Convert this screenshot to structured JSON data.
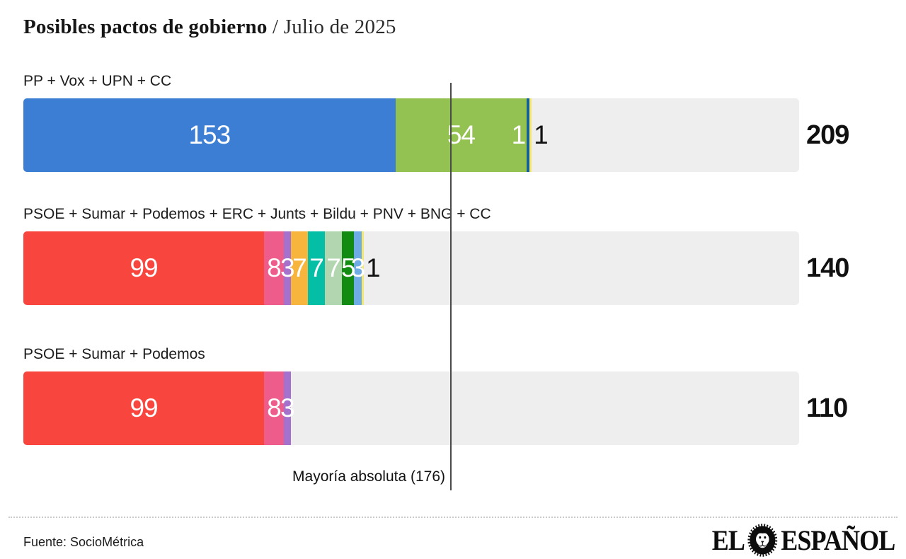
{
  "header": {
    "title_bold": "Posibles pactos de gobierno",
    "title_rest": " / Julio de 2025"
  },
  "chart_data": {
    "type": "bar",
    "subtype": "horizontal-stacked",
    "title": "Posibles pactos de gobierno / Julio de 2025",
    "x_axis": {
      "min": 0,
      "max": 319,
      "units": "escaños",
      "grid": false
    },
    "majority_line": {
      "label": "Mayoría absoluta (176)",
      "seats": 176
    },
    "track_color": "#eeeeee",
    "rows": [
      {
        "label": "PP + Vox + UPN + CC",
        "total": 209,
        "segments": [
          {
            "party": "PP",
            "seats": 153,
            "color": "#3b7ed4",
            "label_color": "#ffffff",
            "label_pos": "center"
          },
          {
            "party": "Vox",
            "seats": 54,
            "color": "#93c152",
            "label_color": "#ffffff",
            "label_pos": "center"
          },
          {
            "party": "UPN",
            "seats": 1,
            "color": "#145f90",
            "label_color": "#ffffff",
            "label_pos": "before"
          },
          {
            "party": "CC",
            "seats": 1,
            "color": "#f3e871",
            "label_color": "#111111",
            "label_pos": "after"
          }
        ]
      },
      {
        "label": "PSOE + Sumar + Podemos + ERC + Junts + Bildu + PNV + BNG + CC",
        "total": 140,
        "segments": [
          {
            "party": "PSOE",
            "seats": 99,
            "color": "#f8463e",
            "label_color": "#ffffff",
            "label_pos": "center"
          },
          {
            "party": "Sumar",
            "seats": 8,
            "color": "#ee5c8b",
            "label_color": "#ffffff",
            "label_pos": "center"
          },
          {
            "party": "Podemos",
            "seats": 3,
            "color": "#a471cd",
            "label_color": "#ffffff",
            "label_pos": "center"
          },
          {
            "party": "ERC",
            "seats": 7,
            "color": "#f8b53e",
            "label_color": "#ffffff",
            "label_pos": "center"
          },
          {
            "party": "Junts",
            "seats": 7,
            "color": "#04bfa6",
            "label_color": "#ffffff",
            "label_pos": "center"
          },
          {
            "party": "Bildu",
            "seats": 7,
            "color": "#b2d7b0",
            "label_color": "#ffffff",
            "label_pos": "center"
          },
          {
            "party": "PNV",
            "seats": 5,
            "color": "#118b11",
            "label_color": "#ffffff",
            "label_pos": "center"
          },
          {
            "party": "BNG",
            "seats": 3,
            "color": "#6face5",
            "label_color": "#ffffff",
            "label_pos": "center"
          },
          {
            "party": "CC",
            "seats": 1,
            "color": "#f3e871",
            "label_color": "#111111",
            "label_pos": "after"
          }
        ]
      },
      {
        "label": "PSOE + Sumar + Podemos",
        "total": 110,
        "segments": [
          {
            "party": "PSOE",
            "seats": 99,
            "color": "#f8463e",
            "label_color": "#ffffff",
            "label_pos": "center"
          },
          {
            "party": "Sumar",
            "seats": 8,
            "color": "#ee5c8b",
            "label_color": "#ffffff",
            "label_pos": "center"
          },
          {
            "party": "Podemos",
            "seats": 3,
            "color": "#a471cd",
            "label_color": "#ffffff",
            "label_pos": "center"
          }
        ]
      }
    ]
  },
  "footer": {
    "source": "Fuente: SocioMétrica",
    "brand_left": "EL",
    "brand_right": "ESPAÑOL",
    "lion_icon": "lion-head",
    "brand_color": "#0d0d0d"
  }
}
